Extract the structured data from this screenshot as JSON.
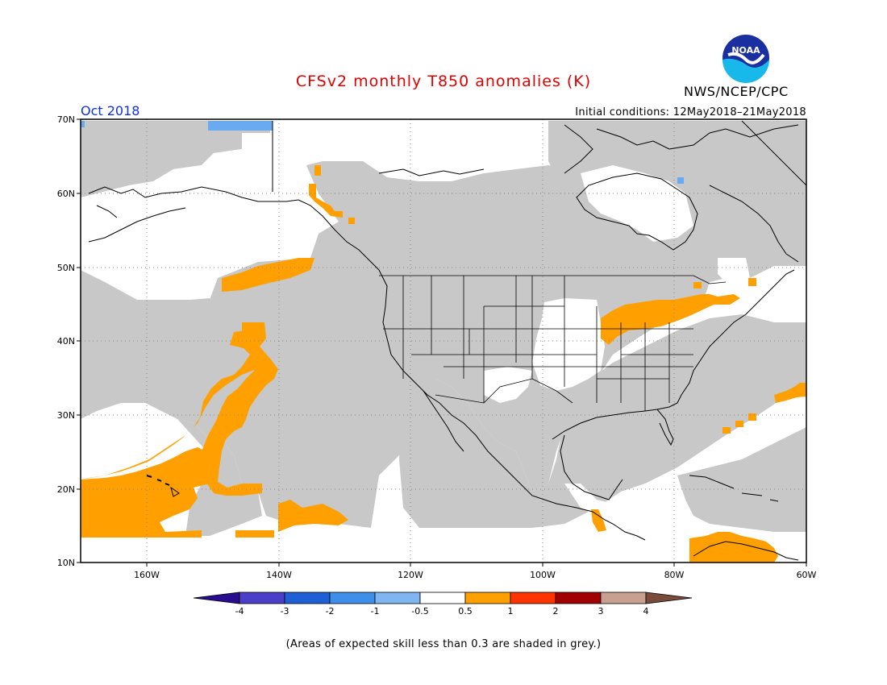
{
  "title": "CFSv2 monthly T850 anomalies (K)",
  "agency": "NWS/NCEP/CPC",
  "logo_text": "NOAA",
  "valid_month": "Oct 2018",
  "initial_conditions": "Initial conditions: 12May2018–21May2018",
  "lat_labels": [
    "70N",
    "60N",
    "50N",
    "40N",
    "30N",
    "20N",
    "10N"
  ],
  "lon_labels": [
    "160W",
    "140W",
    "120W",
    "100W",
    "80W",
    "60W"
  ],
  "colorbar": {
    "tick_labels": [
      "-4",
      "-3",
      "-2",
      "-1",
      "-0.5",
      "0.5",
      "1",
      "2",
      "3",
      "4"
    ],
    "colors": [
      "#2a0c8e",
      "#4b3ec8",
      "#1f5fd6",
      "#3d8fea",
      "#7fb6f2",
      "#ffffff",
      "#ff9f00",
      "#ff3300",
      "#a00000",
      "#c8a08f",
      "#7a4a3a"
    ]
  },
  "colors": {
    "skill_mask_grey": "#c8c8c8",
    "warm_anomaly": "#ff9f00",
    "cool_anomaly": "#6aaaf0",
    "title_red": "#e00000",
    "month_blue": "#1030e0"
  },
  "footnote": "(Areas of expected skill less than 0.3 are shaded in grey.)"
}
